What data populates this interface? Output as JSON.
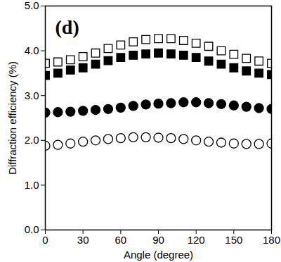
{
  "chart_data": {
    "type": "scatter",
    "x_label": "Angle (degree)",
    "y_label": "Diffraction efficiency (%)",
    "annotations": [
      "(d)"
    ],
    "x": [
      0,
      10,
      20,
      30,
      40,
      50,
      60,
      70,
      80,
      90,
      100,
      110,
      120,
      130,
      140,
      150,
      160,
      170,
      180
    ],
    "series": [
      {
        "color": "#000000",
        "marker": "square-open",
        "values": [
          3.72,
          3.75,
          3.8,
          3.87,
          3.95,
          4.05,
          4.13,
          4.2,
          4.25,
          4.27,
          4.27,
          4.23,
          4.17,
          4.1,
          4.0,
          3.92,
          3.83,
          3.77,
          3.72
        ]
      },
      {
        "color": "#000000",
        "marker": "square",
        "values": [
          3.45,
          3.5,
          3.57,
          3.62,
          3.7,
          3.78,
          3.85,
          3.9,
          3.93,
          3.95,
          3.93,
          3.9,
          3.85,
          3.77,
          3.7,
          3.62,
          3.55,
          3.5,
          3.47
        ]
      },
      {
        "color": "#000000",
        "marker": "circle",
        "values": [
          2.62,
          2.63,
          2.64,
          2.66,
          2.68,
          2.7,
          2.73,
          2.77,
          2.8,
          2.82,
          2.83,
          2.85,
          2.85,
          2.83,
          2.81,
          2.78,
          2.75,
          2.72,
          2.7
        ]
      },
      {
        "color": "#000000",
        "marker": "circle-open",
        "values": [
          1.88,
          1.9,
          1.93,
          1.97,
          2.0,
          2.03,
          2.05,
          2.07,
          2.07,
          2.06,
          2.05,
          2.03,
          2.0,
          1.97,
          1.95,
          1.93,
          1.92,
          1.92,
          1.93
        ]
      }
    ],
    "xlim": [
      0,
      180
    ],
    "xticks": [
      0,
      30,
      60,
      90,
      120,
      150,
      180
    ],
    "ylim": [
      0,
      5
    ],
    "yticks": [
      {
        "value": 0,
        "label": "0.0"
      },
      {
        "value": 1,
        "label": "1.0"
      },
      {
        "value": 2,
        "label": "2.0"
      },
      {
        "value": 3,
        "label": "3.0"
      },
      {
        "value": 4,
        "label": "4.0"
      },
      {
        "value": 5,
        "label": "5.0"
      }
    ],
    "grid": false
  }
}
